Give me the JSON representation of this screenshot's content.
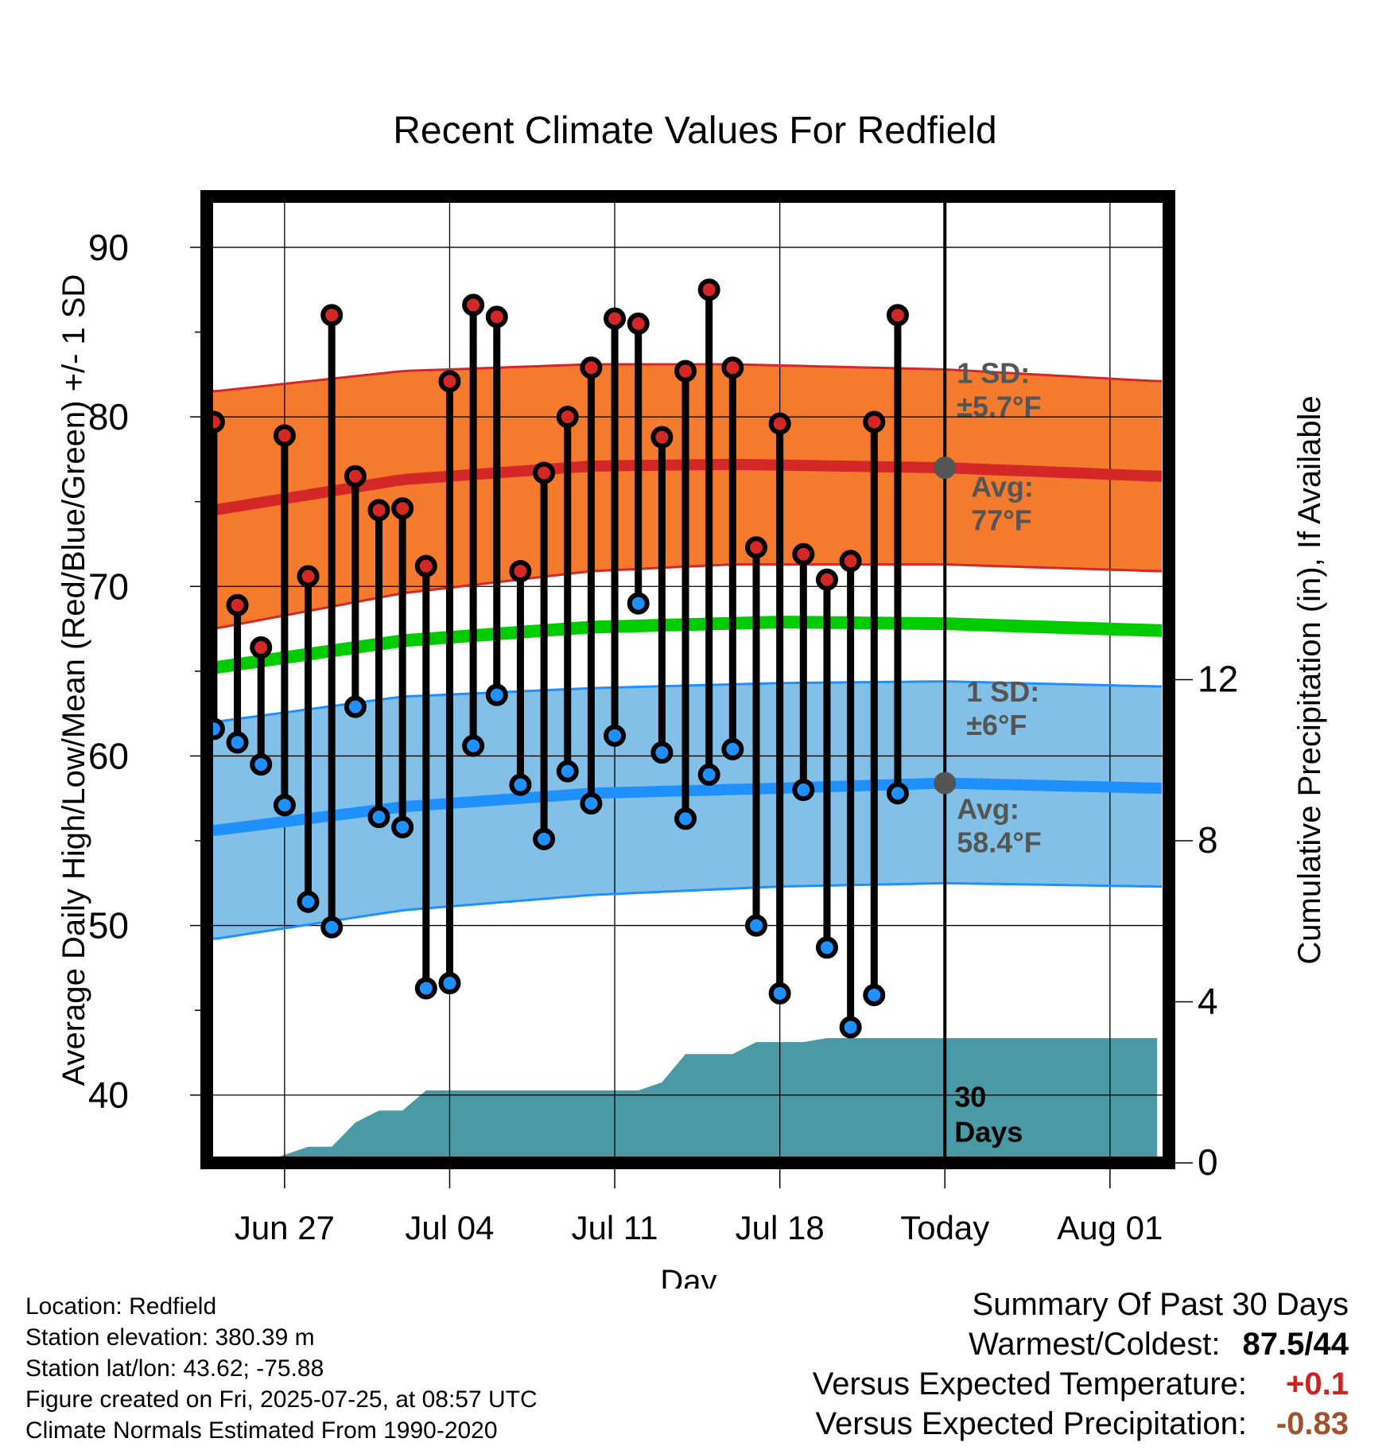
{
  "chart_data": {
    "type": "line",
    "title": "Recent Climate Values For Redfield",
    "xlabel": "Day",
    "ylabel": "Average Daily High/Low/Mean (Red/Blue/Green) +/- 1 SD",
    "y2label": "Cumulative Precipitation (in), If Available",
    "ylim": [
      36,
      93
    ],
    "y2lim": [
      0,
      24
    ],
    "yticks": [
      40,
      50,
      60,
      70,
      80,
      90
    ],
    "y2ticks": [
      0,
      4,
      8,
      12
    ],
    "xticks": [
      {
        "day": 3,
        "label": "Jun 27"
      },
      {
        "day": 10,
        "label": "Jul 04"
      },
      {
        "day": 17,
        "label": "Jul 11"
      },
      {
        "day": 24,
        "label": "Jul 18"
      },
      {
        "day": 31,
        "label": "Today"
      },
      {
        "day": 38,
        "label": "Aug 01"
      }
    ],
    "xlim": [
      -0.3,
      40.5
    ],
    "grid": true,
    "days": [
      "Jun 25",
      "Jun 26",
      "Jun 27",
      "Jun 28",
      "Jun 29",
      "Jun 30",
      "Jul 01",
      "Jul 02",
      "Jul 03",
      "Jul 04",
      "Jul 05",
      "Jul 06",
      "Jul 07",
      "Jul 08",
      "Jul 09",
      "Jul 10",
      "Jul 11",
      "Jul 12",
      "Jul 13",
      "Jul 14",
      "Jul 15",
      "Jul 16",
      "Jul 17",
      "Jul 18",
      "Jul 19",
      "Jul 20",
      "Jul 21",
      "Jul 22",
      "Jul 23",
      "Jul 24"
    ],
    "daily_high": [
      79.7,
      68.9,
      66.4,
      78.9,
      70.6,
      86.0,
      76.5,
      74.5,
      74.6,
      71.2,
      82.1,
      86.6,
      85.9,
      70.9,
      76.7,
      80.0,
      82.9,
      85.8,
      85.5,
      78.8,
      82.7,
      87.5,
      82.9,
      72.3,
      79.6,
      71.9,
      70.4,
      71.5,
      79.7,
      86.0
    ],
    "daily_low": [
      61.6,
      60.8,
      59.5,
      57.1,
      51.4,
      49.9,
      62.9,
      56.4,
      55.8,
      46.3,
      46.6,
      60.6,
      63.6,
      58.3,
      55.1,
      59.1,
      57.2,
      61.2,
      69.0,
      60.2,
      56.3,
      58.9,
      60.4,
      50.0,
      46.0,
      58.0,
      48.7,
      44.0,
      45.9,
      57.8
    ],
    "normal_high_mean": [
      {
        "day": 0,
        "value": 74.5
      },
      {
        "day": 8,
        "value": 76.3
      },
      {
        "day": 16,
        "value": 77.1
      },
      {
        "day": 22,
        "value": 77.2
      },
      {
        "day": 31,
        "value": 77.0
      },
      {
        "day": 40,
        "value": 76.5
      }
    ],
    "normal_high_upper": [
      {
        "day": 0,
        "value": 81.5
      },
      {
        "day": 8,
        "value": 82.7
      },
      {
        "day": 16,
        "value": 83.1
      },
      {
        "day": 22,
        "value": 83.1
      },
      {
        "day": 31,
        "value": 82.8
      },
      {
        "day": 40,
        "value": 82.1
      }
    ],
    "normal_high_lower": [
      {
        "day": 0,
        "value": 67.5
      },
      {
        "day": 8,
        "value": 69.6
      },
      {
        "day": 16,
        "value": 70.9
      },
      {
        "day": 22,
        "value": 71.3
      },
      {
        "day": 31,
        "value": 71.3
      },
      {
        "day": 40,
        "value": 70.9
      }
    ],
    "normal_mean": [
      {
        "day": 0,
        "value": 65.2
      },
      {
        "day": 8,
        "value": 66.8
      },
      {
        "day": 16,
        "value": 67.6
      },
      {
        "day": 24,
        "value": 67.9
      },
      {
        "day": 31,
        "value": 67.8
      },
      {
        "day": 40,
        "value": 67.4
      }
    ],
    "normal_low_mean": [
      {
        "day": 0,
        "value": 55.6
      },
      {
        "day": 8,
        "value": 57.0
      },
      {
        "day": 16,
        "value": 57.8
      },
      {
        "day": 24,
        "value": 58.1
      },
      {
        "day": 31,
        "value": 58.4
      },
      {
        "day": 40,
        "value": 58.1
      }
    ],
    "normal_low_upper": [
      {
        "day": 0,
        "value": 62.0
      },
      {
        "day": 8,
        "value": 63.5
      },
      {
        "day": 16,
        "value": 64.0
      },
      {
        "day": 24,
        "value": 64.3
      },
      {
        "day": 31,
        "value": 64.4
      },
      {
        "day": 40,
        "value": 64.1
      }
    ],
    "normal_low_lower": [
      {
        "day": 0,
        "value": 49.2
      },
      {
        "day": 8,
        "value": 50.9
      },
      {
        "day": 16,
        "value": 51.8
      },
      {
        "day": 24,
        "value": 52.3
      },
      {
        "day": 31,
        "value": 52.5
      },
      {
        "day": 40,
        "value": 52.3
      }
    ],
    "cumulative_precip": [
      {
        "day": 0,
        "value": 0.0
      },
      {
        "day": 2,
        "value": 0.0
      },
      {
        "day": 3,
        "value": 0.2
      },
      {
        "day": 4,
        "value": 0.4
      },
      {
        "day": 5,
        "value": 0.4
      },
      {
        "day": 6,
        "value": 1.0
      },
      {
        "day": 7,
        "value": 1.3
      },
      {
        "day": 8,
        "value": 1.3
      },
      {
        "day": 9,
        "value": 1.8
      },
      {
        "day": 10,
        "value": 1.8
      },
      {
        "day": 11,
        "value": 1.8
      },
      {
        "day": 12,
        "value": 1.8
      },
      {
        "day": 13,
        "value": 1.8
      },
      {
        "day": 14,
        "value": 1.8
      },
      {
        "day": 15,
        "value": 1.8
      },
      {
        "day": 16,
        "value": 1.8
      },
      {
        "day": 17,
        "value": 1.8
      },
      {
        "day": 18,
        "value": 1.8
      },
      {
        "day": 19,
        "value": 2.0
      },
      {
        "day": 20,
        "value": 2.7
      },
      {
        "day": 21,
        "value": 2.7
      },
      {
        "day": 22,
        "value": 2.7
      },
      {
        "day": 23,
        "value": 3.0
      },
      {
        "day": 24,
        "value": 3.0
      },
      {
        "day": 25,
        "value": 3.0
      },
      {
        "day": 26,
        "value": 3.1
      },
      {
        "day": 27,
        "value": 3.1
      },
      {
        "day": 28,
        "value": 3.1
      },
      {
        "day": 29,
        "value": 3.1
      },
      {
        "day": 30,
        "value": 3.1
      },
      {
        "day": 31,
        "value": 3.1
      },
      {
        "day": 40,
        "value": 3.1
      }
    ],
    "today_day": 31,
    "today_high_avg": 77.0,
    "today_low_avg": 58.4,
    "annotations": {
      "high_sd": [
        "1 SD:",
        "±5.7°F"
      ],
      "high_avg": [
        "Avg:",
        "77°F"
      ],
      "low_sd": [
        "1 SD:",
        "±6°F"
      ],
      "low_avg": [
        "Avg:",
        "58.4°F"
      ],
      "window": [
        "30",
        "Days"
      ]
    },
    "colors": {
      "high_band": "#f47a2e",
      "high_line": "#d42828",
      "high_edge": "#d42828",
      "mean_line": "#00cc00",
      "low_band": "#82c0e8",
      "low_line": "#1e90ff",
      "low_edge": "#1e90ff",
      "precip": "#4a9aa5",
      "high_marker": "#d42828",
      "low_marker": "#1e90ff",
      "today_marker": "#555555"
    }
  },
  "info": {
    "location": "Location: Redfield",
    "elevation": "Station elevation: 380.39 m",
    "latlon": "Station lat/lon: 43.62; -75.88",
    "created": "Figure created on Fri, 2025-07-25, at 08:57 UTC",
    "normals": "Climate Normals Estimated From 1990-2020"
  },
  "summary": {
    "title": "Summary Of Past 30 Days",
    "warmest_label": "Warmest/Coldest:",
    "warmest_value": "87.5/44",
    "temp_label": "Versus Expected Temperature:",
    "temp_value": "+0.1",
    "temp_color": "#cc2222",
    "precip_label": "Versus Expected Precipitation:",
    "precip_value": "-0.83",
    "precip_color": "#a0522d"
  }
}
